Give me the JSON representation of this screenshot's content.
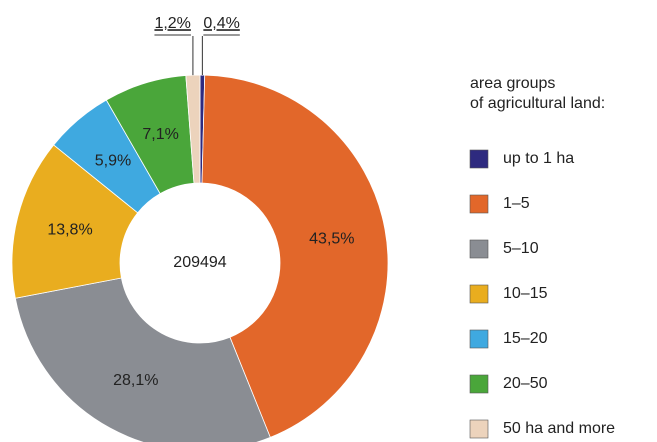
{
  "chart_data": {
    "type": "donut",
    "center_label": "209494",
    "legend_title": "area groups\nof agricultural land:",
    "categories": [
      "up to 1 ha",
      "1–5",
      "5–10",
      "10–15",
      "15–20",
      "20–50",
      "50 ha and more"
    ],
    "values": [
      0.4,
      43.5,
      28.1,
      13.8,
      5.9,
      7.1,
      1.2
    ],
    "value_labels": [
      "0,4%",
      "43,5%",
      "28,1%",
      "13,8%",
      "5,9%",
      "7,1%",
      "1,2%"
    ],
    "colors": [
      "#2e2a7f",
      "#e2672a",
      "#8a8d93",
      "#e9ad1f",
      "#3fa9e0",
      "#4aa63a",
      "#ecd3bc"
    ]
  }
}
